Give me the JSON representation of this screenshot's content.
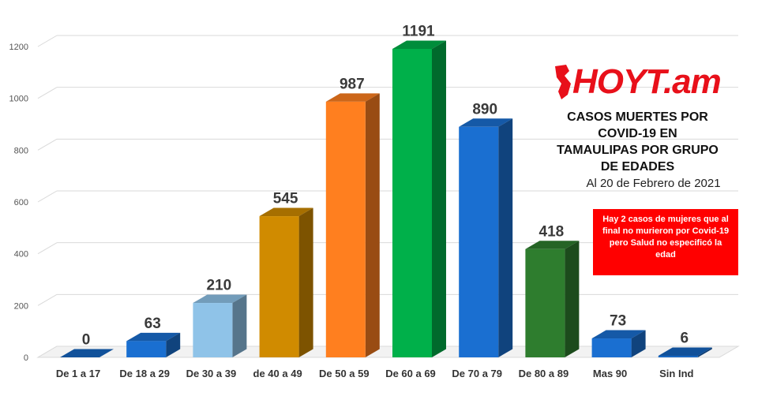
{
  "chart_data": {
    "type": "bar",
    "categories": [
      "De 1 a 17",
      "De 18 a 29",
      "De 30 a 39",
      "de 40 a 49",
      "De 50 a 59",
      "De 60 a 69",
      "De 70 a 79",
      "De 80 a 89",
      "Mas 90",
      "Sin Ind"
    ],
    "values": [
      0,
      63,
      210,
      545,
      987,
      1191,
      890,
      418,
      73,
      6
    ],
    "bar_colors": [
      "#1565c0",
      "#1a6fd1",
      "#8fc3e8",
      "#d08b00",
      "#ff7f1f",
      "#00b04a",
      "#1a6fd1",
      "#2e7d2e",
      "#1a6fd1",
      "#1565c0"
    ],
    "yticks": [
      0,
      200,
      400,
      600,
      800,
      1000,
      1200
    ],
    "ylim": [
      0,
      1200
    ],
    "title": "CASOS MUERTES POR COVID-19 EN TAMAULIPAS POR GRUPO DE EDADES",
    "subtitle": "Al 20 de Febrero de 2021",
    "grid": true
  },
  "brand": {
    "logo_text": "HOYT.am",
    "color": "#e8101a"
  },
  "title_lines": [
    "CASOS MUERTES POR",
    "COVID-19 EN",
    "TAMAULIPAS POR GRUPO",
    "DE EDADES"
  ],
  "note": "Hay 2 casos de mujeres que al final no murieron por Covid-19 pero Salud no especificó la edad"
}
